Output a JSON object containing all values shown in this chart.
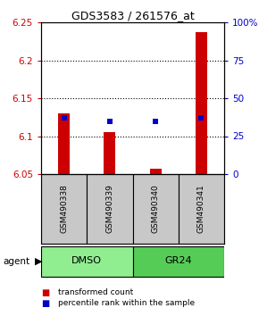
{
  "title": "GDS3583 / 261576_at",
  "samples": [
    "GSM490338",
    "GSM490339",
    "GSM490340",
    "GSM490341"
  ],
  "red_values": [
    6.13,
    6.105,
    6.057,
    6.237
  ],
  "blue_values_pct": [
    37,
    35,
    35,
    37
  ],
  "ylim_left": [
    6.05,
    6.25
  ],
  "ylim_right": [
    0,
    100
  ],
  "yticks_left": [
    6.05,
    6.1,
    6.15,
    6.2,
    6.25
  ],
  "ytick_labels_left": [
    "6.05",
    "6.1",
    "6.15",
    "6.2",
    "6.25"
  ],
  "yticks_right": [
    0,
    25,
    50,
    75,
    100
  ],
  "ytick_labels_right": [
    "0",
    "25",
    "50",
    "75",
    "100%"
  ],
  "groups": [
    {
      "label": "DMSO",
      "samples": [
        0,
        1
      ],
      "color": "#90EE90"
    },
    {
      "label": "GR24",
      "samples": [
        2,
        3
      ],
      "color": "#55CC55"
    }
  ],
  "bar_width": 0.25,
  "red_color": "#CC0000",
  "blue_color": "#0000CC",
  "blue_marker_size": 5,
  "legend_red": "transformed count",
  "legend_blue": "percentile rank within the sample",
  "background_color": "#ffffff",
  "sample_box_color": "#C8C8C8",
  "title_fontsize": 9
}
